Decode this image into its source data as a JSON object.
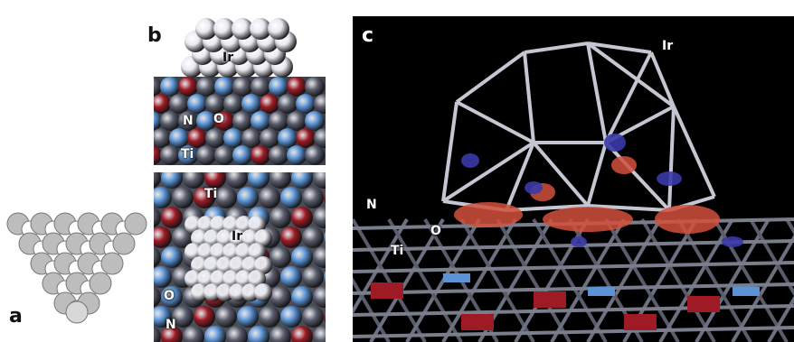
{
  "panels": {
    "a": {
      "letter": "a"
    },
    "b": {
      "letter": "b",
      "top_labels": [
        "Ir",
        "N",
        "O",
        "Ti"
      ],
      "bottom_labels": [
        "Ti",
        "Ir",
        "O",
        "N"
      ]
    },
    "c": {
      "letter": "c",
      "labels": [
        "Ir",
        "N",
        "O",
        "Ti"
      ]
    }
  },
  "colors": {
    "titanium": "#5b5e6e",
    "nitrogen": "#5b93d4",
    "oxygen": "#9e1b26",
    "iridium": "#e8e8f0",
    "density_positive": "#d2503c",
    "density_negative": "#3a3aa8",
    "background_c": "#000000"
  }
}
